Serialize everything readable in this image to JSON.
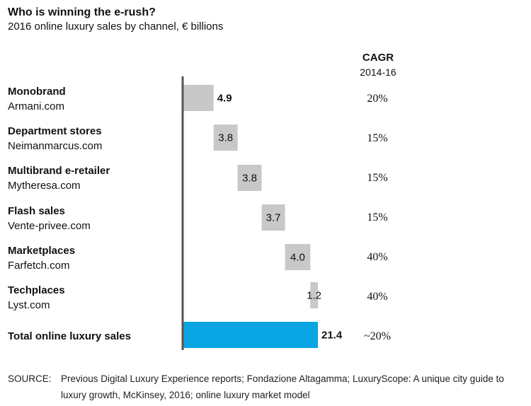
{
  "title": "Who is winning the e-rush?",
  "subtitle": "2016 online luxury sales by channel, € billions",
  "cagr_header": {
    "label": "CAGR",
    "period": "2014-16"
  },
  "rows": [
    {
      "name": "Monobrand",
      "example": "Armani.com",
      "value": "4.9",
      "cagr": "20%"
    },
    {
      "name": "Department stores",
      "example": "Neimanmarcus.com",
      "value": "3.8",
      "cagr": "15%"
    },
    {
      "name": "Multibrand e-retailer",
      "example": "Mytheresa.com",
      "value": "3.8",
      "cagr": "15%"
    },
    {
      "name": "Flash sales",
      "example": "Vente-privee.com",
      "value": "3.7",
      "cagr": "15%"
    },
    {
      "name": "Marketplaces",
      "example": "Farfetch.com",
      "value": "4.0",
      "cagr": "40%"
    },
    {
      "name": "Techplaces",
      "example": "Lyst.com",
      "value": "1.2",
      "cagr": "40%"
    }
  ],
  "total": {
    "name": "Total online luxury sales",
    "value": "21.4",
    "cagr": "~20%"
  },
  "source": {
    "label": "SOURCE:",
    "text": "Previous Digital Luxury Experience reports; Fondazione Altagamma; LuxuryScope: A unique city guide to luxury growth, McKinsey, 2016; online luxury market model"
  },
  "colors": {
    "bar": "#c8c8c8",
    "total": "#0aa5e3",
    "axis": "#555555"
  },
  "chart_data": {
    "type": "bar",
    "subtype": "waterfall",
    "title": "Who is winning the e-rush?",
    "subtitle": "2016 online luxury sales by channel, € billions",
    "categories": [
      "Monobrand",
      "Department stores",
      "Multibrand e-retailer",
      "Flash sales",
      "Marketplaces",
      "Techplaces",
      "Total online luxury sales"
    ],
    "values": [
      4.9,
      3.8,
      3.8,
      3.7,
      4.0,
      1.2,
      21.4
    ],
    "total_index": 6,
    "cagr_2014_16": [
      "20%",
      "15%",
      "15%",
      "15%",
      "40%",
      "40%",
      "~20%"
    ],
    "xlim": [
      0,
      21.4
    ],
    "grid": false,
    "legend": "none"
  }
}
